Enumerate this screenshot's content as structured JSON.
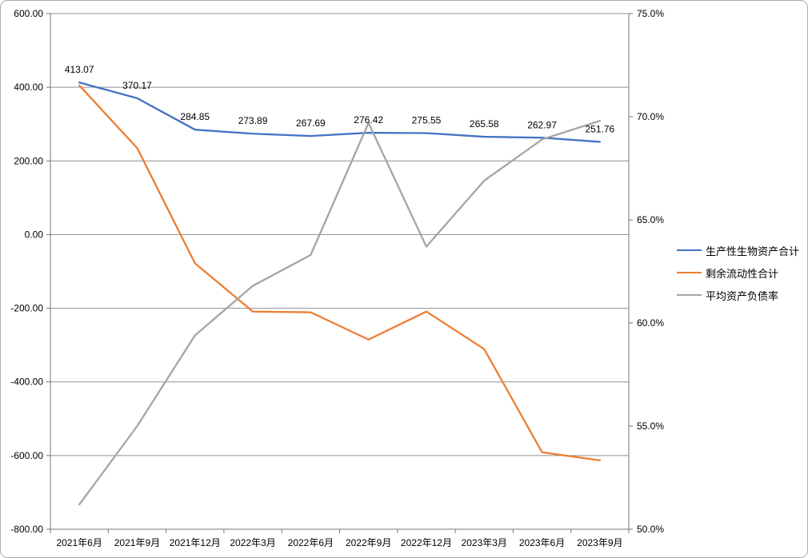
{
  "chart_data": {
    "type": "line",
    "categories": [
      "2021年6月",
      "2021年9月",
      "2021年12月",
      "2022年3月",
      "2022年6月",
      "2022年9月",
      "2022年12月",
      "2023年3月",
      "2023年6月",
      "2023年9月"
    ],
    "series": [
      {
        "name": "生产性生物资产合计",
        "color": "#4472C4",
        "axis": "left",
        "values": [
          413.07,
          370.17,
          284.85,
          273.89,
          267.69,
          276.42,
          275.55,
          265.58,
          262.97,
          251.76
        ],
        "point_labels": [
          "413.07",
          "370.17",
          "284.85",
          "273.89",
          "267.69",
          "276.42",
          "275.55",
          "265.58",
          "262.97",
          "251.76"
        ]
      },
      {
        "name": "剩余流动性合计",
        "color": "#ED7D31",
        "axis": "left",
        "values": [
          405,
          235,
          -78,
          -209,
          -211,
          -285,
          -209,
          -311,
          -591,
          -613
        ],
        "point_labels": []
      },
      {
        "name": "平均资产负债率",
        "color": "#A5A5A5",
        "axis": "right",
        "values": [
          51.2,
          55.0,
          59.4,
          61.8,
          63.3,
          69.7,
          63.7,
          66.9,
          68.9,
          69.8
        ],
        "point_labels": []
      }
    ],
    "left_axis": {
      "max": 600,
      "min": -800,
      "tick_labels": [
        "600.00",
        "400.00",
        "200.00",
        "0.00",
        "-200.00",
        "-400.00",
        "-600.00",
        "-800.00"
      ]
    },
    "right_axis": {
      "max": 75,
      "min": 50,
      "tick_labels": [
        "75.0%",
        "70.0%",
        "65.0%",
        "60.0%",
        "55.0%",
        "50.0%"
      ]
    },
    "title": "",
    "grid": true,
    "legend_position": "right"
  }
}
